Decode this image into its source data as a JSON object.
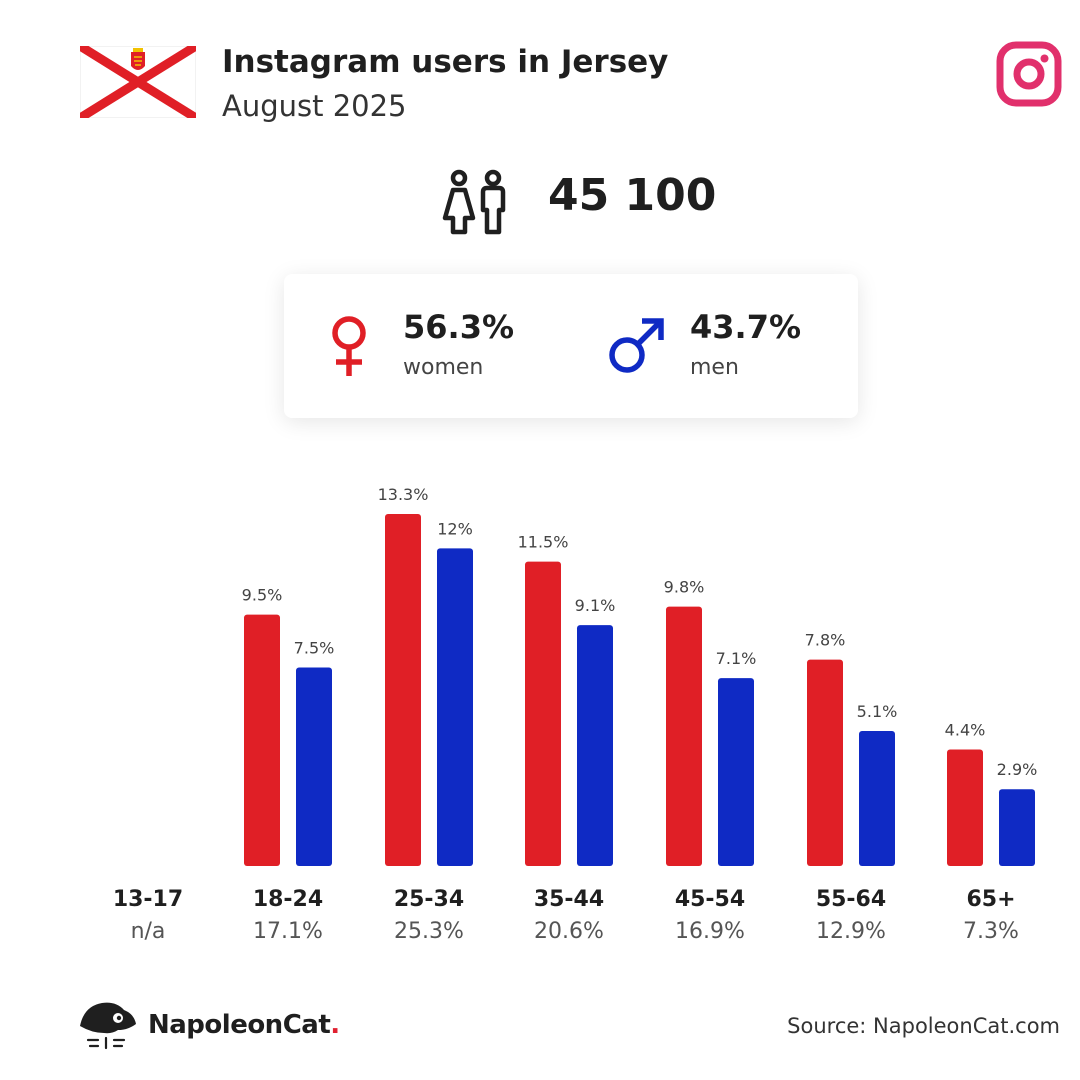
{
  "header": {
    "title": "Instagram users in Jersey",
    "subtitle": "August 2025"
  },
  "summary": {
    "total_users": "45 100",
    "women_pct": "56.3%",
    "women_label": "women",
    "men_pct": "43.7%",
    "men_label": "men"
  },
  "colors": {
    "women": "#e01f26",
    "men": "#0f2ac4",
    "instagram": "#e1306c"
  },
  "icons": {
    "flag": "jersey-flag-icon",
    "platform": "instagram-icon",
    "users": "users-icon",
    "female": "female-symbol-icon",
    "male": "male-symbol-icon",
    "brand": "napoleoncat-logo-icon"
  },
  "chart_data": {
    "type": "bar",
    "categories": [
      "13-17",
      "18-24",
      "25-34",
      "35-44",
      "45-54",
      "55-64",
      "65+"
    ],
    "category_shares": [
      "n/a",
      "17.1%",
      "25.3%",
      "20.6%",
      "16.9%",
      "12.9%",
      "7.3%"
    ],
    "series": [
      {
        "name": "women",
        "values": [
          null,
          9.5,
          13.3,
          11.5,
          9.8,
          7.8,
          4.4
        ],
        "labels": [
          "",
          "9.5%",
          "13.3%",
          "11.5%",
          "9.8%",
          "7.8%",
          "4.4%"
        ]
      },
      {
        "name": "men",
        "values": [
          null,
          7.5,
          12,
          9.1,
          7.1,
          5.1,
          2.9
        ],
        "labels": [
          "",
          "7.5%",
          "12%",
          "9.1%",
          "7.1%",
          "5.1%",
          "2.9%"
        ]
      }
    ],
    "ylim": [
      0,
      13.3
    ],
    "grid": false,
    "legend": "none",
    "title": "",
    "xlabel": "",
    "ylabel": ""
  },
  "footer": {
    "brand_name": "NapoleonCat",
    "brand_dot": ".",
    "source": "Source: NapoleonCat.com"
  }
}
